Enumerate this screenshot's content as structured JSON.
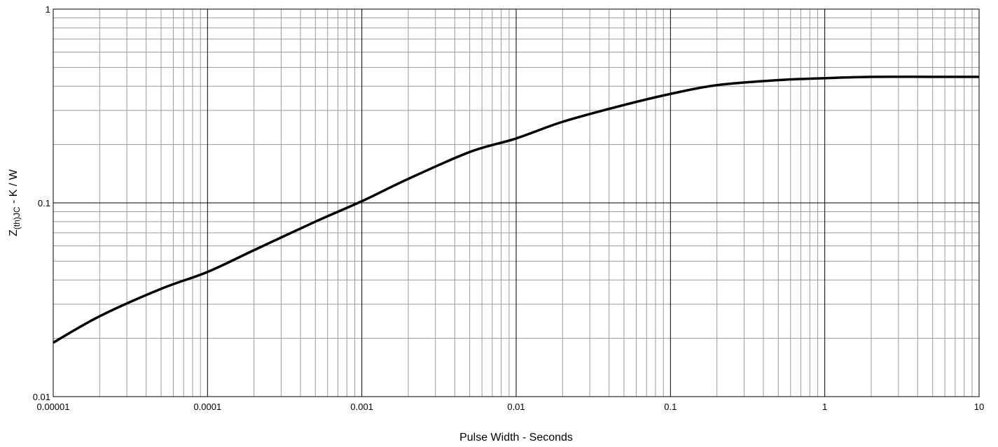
{
  "chart_data": {
    "type": "line",
    "title": "",
    "xlabel": "Pulse Width - Seconds",
    "ylabel": {
      "base": "Z",
      "subscript": "(th)JC",
      "rest": " - K / W"
    },
    "x_scale": "log",
    "y_scale": "log",
    "xlim": [
      1e-05,
      10
    ],
    "ylim": [
      0.01,
      1
    ],
    "x_ticks": [
      "0.00001",
      "0.0001",
      "0.001",
      "0.01",
      "0.1",
      "1",
      "10"
    ],
    "y_ticks": [
      "1",
      "0.1",
      "0.01"
    ],
    "grid": true,
    "legend": "none",
    "series": [
      {
        "color": "#000000",
        "x": [
          1e-05,
          2e-05,
          5e-05,
          0.0001,
          0.0002,
          0.0005,
          0.001,
          0.002,
          0.005,
          0.01,
          0.02,
          0.05,
          0.1,
          0.2,
          0.5,
          1,
          2,
          5,
          10
        ],
        "y": [
          0.019,
          0.026,
          0.036,
          0.044,
          0.057,
          0.08,
          0.102,
          0.133,
          0.183,
          0.215,
          0.262,
          0.32,
          0.365,
          0.405,
          0.43,
          0.44,
          0.447,
          0.447,
          0.447
        ]
      }
    ]
  }
}
